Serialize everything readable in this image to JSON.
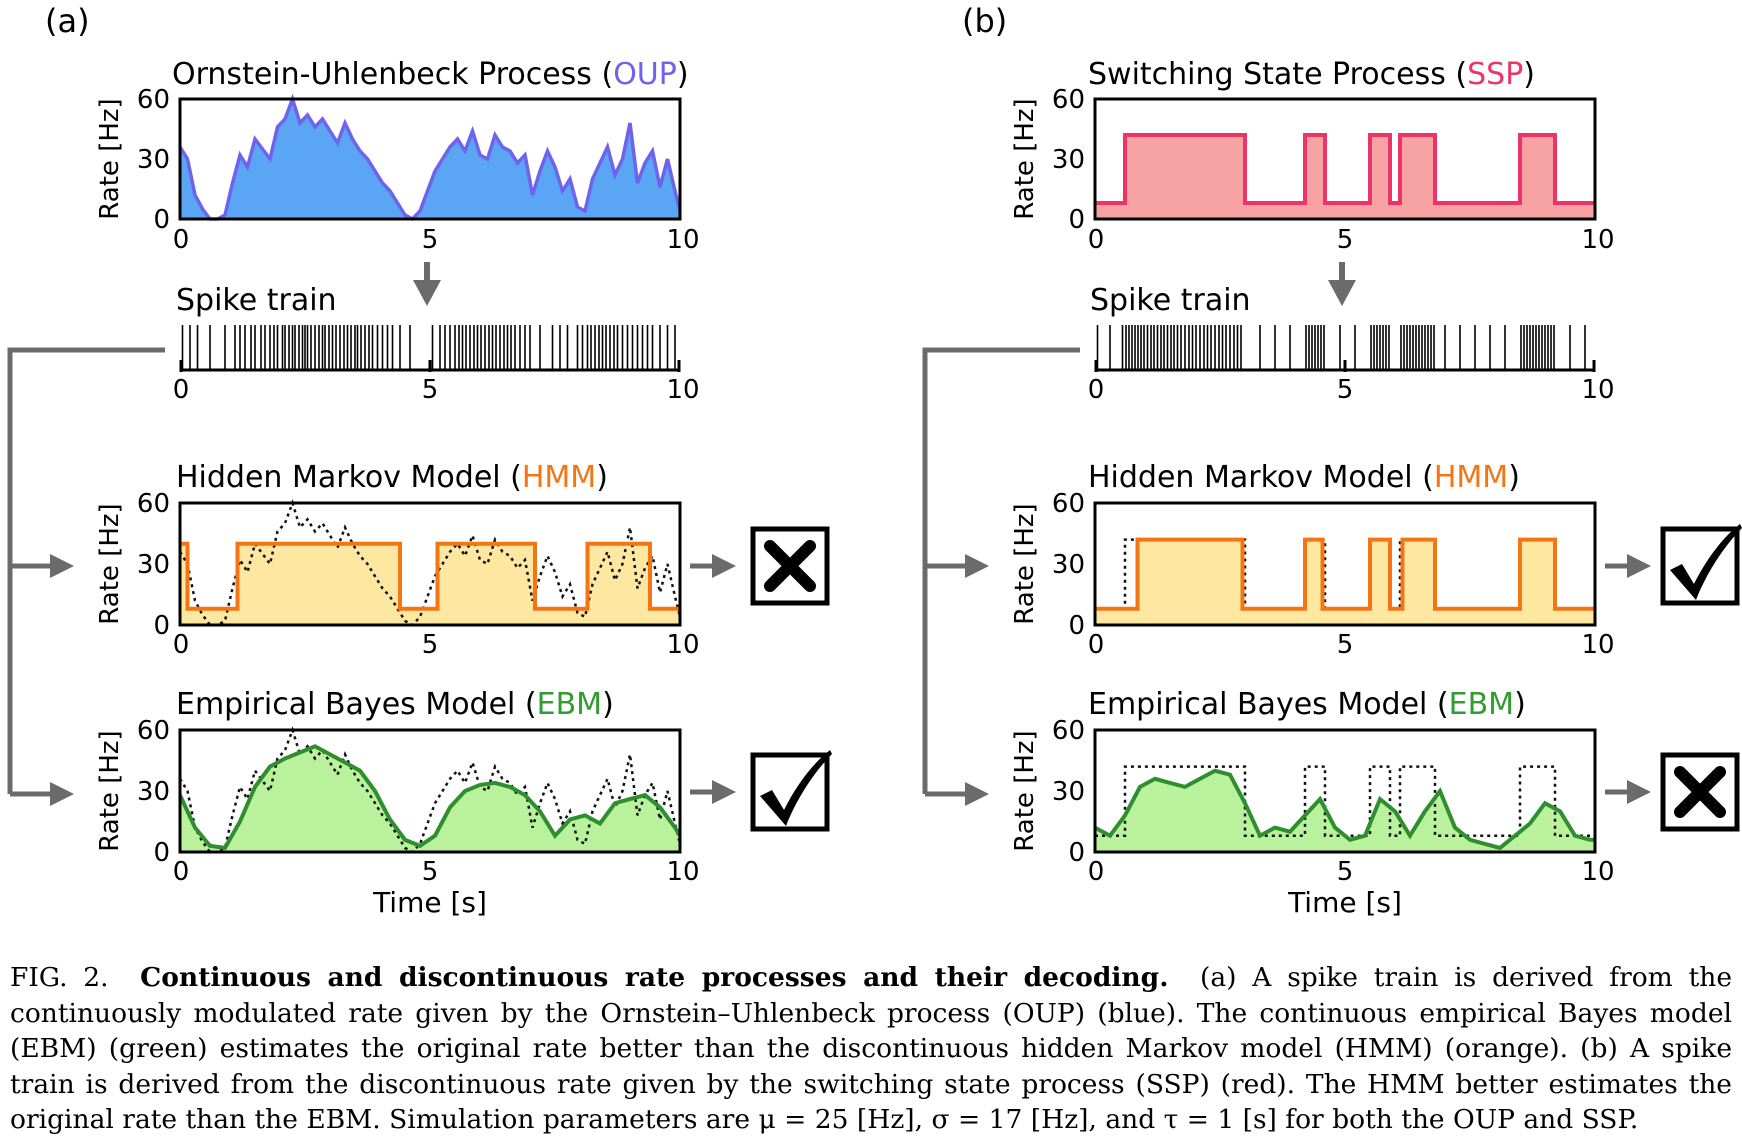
{
  "panels": [
    {
      "label": "(a)",
      "process": {
        "title": "Ornstein-Uhlenbeck Process (",
        "abbr": "OUP",
        "close": ")",
        "ylabel": "Rate [Hz]",
        "xlabel": "",
        "x": [
          0,
          0.15,
          0.3,
          0.45,
          0.6,
          0.75,
          0.9,
          1.05,
          1.2,
          1.35,
          1.5,
          1.65,
          1.8,
          1.95,
          2.1,
          2.25,
          2.4,
          2.55,
          2.7,
          2.85,
          3.0,
          3.15,
          3.3,
          3.45,
          3.6,
          3.75,
          3.9,
          4.05,
          4.2,
          4.35,
          4.5,
          4.65,
          4.8,
          4.95,
          5.1,
          5.25,
          5.4,
          5.55,
          5.7,
          5.85,
          6.0,
          6.15,
          6.3,
          6.45,
          6.6,
          6.75,
          6.9,
          7.05,
          7.2,
          7.35,
          7.5,
          7.65,
          7.8,
          7.95,
          8.1,
          8.25,
          8.4,
          8.55,
          8.7,
          8.85,
          9.0,
          9.15,
          9.3,
          9.45,
          9.6,
          9.75,
          9.9,
          10.0
        ],
        "y": [
          36,
          30,
          12,
          5,
          0,
          0,
          2,
          18,
          32,
          26,
          40,
          35,
          30,
          46,
          50,
          60,
          48,
          52,
          46,
          50,
          44,
          38,
          48,
          40,
          34,
          30,
          24,
          18,
          14,
          8,
          2,
          0,
          4,
          14,
          24,
          30,
          36,
          40,
          34,
          44,
          32,
          30,
          42,
          36,
          34,
          28,
          32,
          12,
          24,
          34,
          26,
          14,
          20,
          6,
          4,
          20,
          28,
          36,
          22,
          30,
          48,
          18,
          28,
          34,
          16,
          30,
          14,
          4
        ],
        "ylim": [
          0,
          60
        ],
        "yticks": [
          0,
          30,
          60
        ],
        "xlim": [
          0,
          10
        ],
        "xticks": [
          0,
          5,
          10
        ],
        "colors": {
          "line": "#6f63ee",
          "fill": "#5aa6f5",
          "abbr": "#6f63ee"
        }
      },
      "spikes": {
        "title": "Spike train",
        "times": [
          0.05,
          0.2,
          0.35,
          0.6,
          0.9,
          1.1,
          1.2,
          1.3,
          1.42,
          1.5,
          1.62,
          1.7,
          1.8,
          1.88,
          1.95,
          2.05,
          2.1,
          2.18,
          2.25,
          2.3,
          2.38,
          2.45,
          2.5,
          2.55,
          2.62,
          2.7,
          2.78,
          2.85,
          2.9,
          2.98,
          3.05,
          3.12,
          3.2,
          3.28,
          3.35,
          3.42,
          3.5,
          3.55,
          3.62,
          3.7,
          3.78,
          3.85,
          3.95,
          4.05,
          4.15,
          4.25,
          4.4,
          4.6,
          5.05,
          5.2,
          5.3,
          5.4,
          5.5,
          5.58,
          5.65,
          5.72,
          5.8,
          5.88,
          5.95,
          6.02,
          6.1,
          6.18,
          6.25,
          6.32,
          6.4,
          6.48,
          6.55,
          6.62,
          6.7,
          6.8,
          6.9,
          7.0,
          7.2,
          7.45,
          7.6,
          7.75,
          7.95,
          8.05,
          8.15,
          8.22,
          8.3,
          8.38,
          8.45,
          8.52,
          8.6,
          8.68,
          8.75,
          8.85,
          8.95,
          9.05,
          9.15,
          9.25,
          9.35,
          9.45,
          9.6,
          9.75,
          9.9
        ]
      },
      "hmm": {
        "title": "Hidden Markov Model (",
        "abbr": "HMM",
        "close": ")",
        "ylabel": "Rate [Hz]",
        "steps": [
          [
            0,
            0.15,
            40
          ],
          [
            0.15,
            1.15,
            8
          ],
          [
            1.15,
            4.4,
            40
          ],
          [
            4.4,
            5.15,
            8
          ],
          [
            5.15,
            7.1,
            40
          ],
          [
            7.1,
            8.15,
            8
          ],
          [
            8.15,
            9.4,
            40
          ],
          [
            9.4,
            10,
            8
          ]
        ],
        "verdict": "cross",
        "colors": {
          "line": "#f47514",
          "fill": "#fde7a1",
          "abbr": "#f47514"
        }
      },
      "ebm": {
        "title": "Empirical Bayes Model (",
        "abbr": "EBM",
        "close": ")",
        "ylabel": "Rate [Hz]",
        "xlabel": "Time [s]",
        "x": [
          0,
          0.3,
          0.6,
          0.9,
          1.2,
          1.5,
          1.8,
          2.1,
          2.4,
          2.7,
          3.0,
          3.3,
          3.6,
          3.9,
          4.2,
          4.5,
          4.8,
          5.1,
          5.4,
          5.7,
          6.0,
          6.3,
          6.6,
          6.9,
          7.2,
          7.5,
          7.8,
          8.1,
          8.4,
          8.7,
          9.0,
          9.3,
          9.6,
          9.9,
          10.0
        ],
        "y": [
          28,
          12,
          3,
          2,
          15,
          32,
          42,
          46,
          49,
          52,
          48,
          44,
          40,
          30,
          16,
          6,
          3,
          8,
          22,
          30,
          33,
          34,
          32,
          28,
          20,
          8,
          16,
          18,
          14,
          24,
          26,
          28,
          22,
          12,
          8
        ],
        "verdict": "check",
        "colors": {
          "line": "#2f8f2f",
          "fill": "#b9f19c",
          "abbr": "#2f9d2f"
        }
      }
    },
    {
      "label": "(b)",
      "process": {
        "title": "Switching State Process (",
        "abbr": "SSP",
        "close": ")",
        "ylabel": "Rate [Hz]",
        "xlabel": "",
        "steps": [
          [
            0,
            0.6,
            8
          ],
          [
            0.6,
            3.0,
            42
          ],
          [
            3.0,
            4.2,
            8
          ],
          [
            4.2,
            4.6,
            42
          ],
          [
            4.6,
            5.5,
            8
          ],
          [
            5.5,
            5.9,
            42
          ],
          [
            5.9,
            6.1,
            8
          ],
          [
            6.1,
            6.8,
            42
          ],
          [
            6.8,
            8.5,
            8
          ],
          [
            8.5,
            9.2,
            42
          ],
          [
            9.2,
            10,
            8
          ]
        ],
        "ylim": [
          0,
          60
        ],
        "yticks": [
          0,
          30,
          60
        ],
        "xlim": [
          0,
          10
        ],
        "xticks": [
          0,
          5,
          10
        ],
        "colors": {
          "line": "#ee3366",
          "fill": "#f8a3a3",
          "abbr": "#ee3366"
        }
      },
      "spikes": {
        "title": "Spike train",
        "times": [
          0.05,
          0.3,
          0.55,
          0.62,
          0.68,
          0.74,
          0.8,
          0.86,
          0.92,
          0.98,
          1.05,
          1.12,
          1.18,
          1.25,
          1.32,
          1.38,
          1.45,
          1.52,
          1.58,
          1.65,
          1.72,
          1.8,
          1.88,
          1.95,
          2.02,
          2.1,
          2.18,
          2.25,
          2.32,
          2.4,
          2.48,
          2.55,
          2.62,
          2.7,
          2.78,
          2.85,
          2.92,
          3.3,
          3.6,
          3.9,
          4.22,
          4.28,
          4.34,
          4.4,
          4.46,
          4.52,
          4.58,
          4.9,
          5.2,
          5.52,
          5.58,
          5.64,
          5.7,
          5.76,
          5.82,
          5.88,
          6.12,
          6.18,
          6.24,
          6.3,
          6.36,
          6.42,
          6.48,
          6.54,
          6.6,
          6.66,
          6.72,
          6.78,
          7.0,
          7.3,
          7.6,
          7.9,
          8.2,
          8.52,
          8.58,
          8.64,
          8.7,
          8.76,
          8.82,
          8.88,
          8.94,
          9.0,
          9.06,
          9.12,
          9.18,
          9.5,
          9.8
        ]
      },
      "hmm": {
        "title": "Hidden Markov Model (",
        "abbr": "HMM",
        "close": ")",
        "ylabel": "Rate [Hz]",
        "steps": [
          [
            0,
            0.85,
            8
          ],
          [
            0.85,
            2.95,
            42
          ],
          [
            2.95,
            4.2,
            8
          ],
          [
            4.2,
            4.55,
            42
          ],
          [
            4.55,
            5.5,
            8
          ],
          [
            5.5,
            5.9,
            42
          ],
          [
            5.9,
            6.15,
            8
          ],
          [
            6.15,
            6.8,
            42
          ],
          [
            6.8,
            8.5,
            8
          ],
          [
            8.5,
            9.2,
            42
          ],
          [
            9.2,
            10,
            8
          ]
        ],
        "verdict": "check",
        "colors": {
          "line": "#f47514",
          "fill": "#fde7a1",
          "abbr": "#f47514"
        }
      },
      "ebm": {
        "title": "Empirical Bayes Model (",
        "abbr": "EBM",
        "close": ")",
        "ylabel": "Rate [Hz]",
        "xlabel": "Time [s]",
        "x": [
          0,
          0.3,
          0.6,
          0.9,
          1.2,
          1.5,
          1.8,
          2.1,
          2.4,
          2.7,
          3.0,
          3.3,
          3.6,
          3.9,
          4.2,
          4.5,
          4.8,
          5.1,
          5.4,
          5.7,
          6.0,
          6.3,
          6.6,
          6.9,
          7.2,
          7.5,
          7.8,
          8.1,
          8.4,
          8.7,
          9.0,
          9.3,
          9.6,
          9.9,
          10.0
        ],
        "y": [
          12,
          8,
          18,
          32,
          36,
          34,
          32,
          36,
          40,
          38,
          24,
          8,
          12,
          10,
          18,
          26,
          12,
          6,
          8,
          26,
          20,
          8,
          20,
          30,
          12,
          6,
          4,
          2,
          8,
          14,
          24,
          20,
          8,
          6,
          6
        ],
        "verdict": "cross",
        "colors": {
          "line": "#2f8f2f",
          "fill": "#b9f19c",
          "abbr": "#2f9d2f"
        }
      }
    }
  ],
  "caption": {
    "figno": "FIG. 2.",
    "bold": "Continuous and discontinuous rate processes and their decoding.",
    "text": "(a) A spike train is derived from the continuously modulated rate given by the Ornstein–Uhlenbeck process (OUP) (blue). The continuous empirical Bayes model (EBM) (green) estimates the original rate better than the discontinuous hidden Markov model (HMM) (orange). (b) A spike train is derived from the discontinuous rate given by the switching state process (SSP) (red). The HMM better estimates the original rate than the EBM. Simulation parameters are μ = 25 [Hz], σ = 17 [Hz], and τ = 1 [s] for both the OUP and SSP."
  }
}
